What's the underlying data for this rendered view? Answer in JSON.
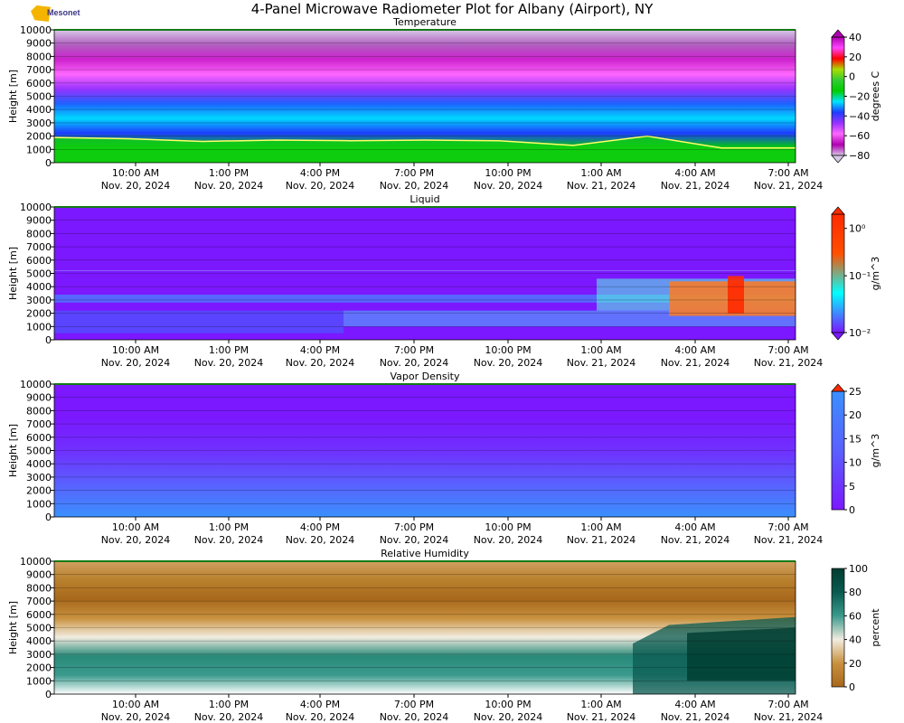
{
  "figure": {
    "title": "4-Panel Microwave Radiometer Plot for Albany (Airport), NY",
    "logo_text": "Mesonet"
  },
  "chart_data": [
    {
      "type": "heatmap",
      "title": "Temperature",
      "ylabel": "Height [m]",
      "ylim": [
        0,
        10000
      ],
      "yticks": [
        "0",
        "1000",
        "2000",
        "3000",
        "4000",
        "5000",
        "6000",
        "7000",
        "8000",
        "9000",
        "10000"
      ],
      "xticks": [
        {
          "time": "10:00 AM",
          "date": "Nov. 20, 2024"
        },
        {
          "time": "1:00 PM",
          "date": "Nov. 20, 2024"
        },
        {
          "time": "4:00 PM",
          "date": "Nov. 20, 2024"
        },
        {
          "time": "7:00 PM",
          "date": "Nov. 20, 2024"
        },
        {
          "time": "10:00 PM",
          "date": "Nov. 20, 2024"
        },
        {
          "time": "1:00 AM",
          "date": "Nov. 21, 2024"
        },
        {
          "time": "4:00 AM",
          "date": "Nov. 21, 2024"
        },
        {
          "time": "7:00 AM",
          "date": "Nov. 21, 2024"
        }
      ],
      "colorbar": {
        "label": "degrees C",
        "ticks": [
          "40",
          "20",
          "0",
          "−20",
          "−40",
          "−60",
          "−80"
        ],
        "range": [
          -80,
          40
        ]
      },
      "freezing_level_m": [
        1900,
        1800,
        1600,
        1700,
        1650,
        1700,
        1650,
        1300,
        2000,
        1100,
        1100
      ],
      "colors": [
        "#e6d9f2",
        "#b000b0",
        "#ff66ff",
        "#9933ff",
        "#1e3cff",
        "#00e5ff",
        "#33cc33",
        "#00cc00"
      ]
    },
    {
      "type": "heatmap",
      "title": "Liquid",
      "ylabel": "Height [m]",
      "ylim": [
        0,
        10000
      ],
      "yticks": [
        "0",
        "1000",
        "2000",
        "3000",
        "4000",
        "5000",
        "6000",
        "7000",
        "8000",
        "9000",
        "10000"
      ],
      "colorbar": {
        "label": "g/m^3",
        "ticks": [
          "10⁰",
          "10⁻¹",
          "10⁻²"
        ],
        "scale": "log",
        "range": [
          0.01,
          2
        ]
      },
      "colors": [
        "#7b18ff",
        "#00ffff",
        "#ff5000",
        "#ff2a00"
      ]
    },
    {
      "type": "heatmap",
      "title": "Vapor Density",
      "ylabel": "Height [m]",
      "ylim": [
        0,
        10000
      ],
      "yticks": [
        "0",
        "1000",
        "2000",
        "3000",
        "4000",
        "5000",
        "6000",
        "7000",
        "8000",
        "9000",
        "10000"
      ],
      "colorbar": {
        "label": "g/m^3",
        "ticks": [
          "25",
          "20",
          "15",
          "10",
          "5",
          "0"
        ],
        "range": [
          0,
          25
        ]
      },
      "colors": [
        "#7b18ff",
        "#5a60ff",
        "#3a90ff"
      ]
    },
    {
      "type": "heatmap",
      "title": "Relative Humidity",
      "ylabel": "Height [m]",
      "ylim": [
        0,
        10000
      ],
      "yticks": [
        "0",
        "1000",
        "2000",
        "3000",
        "4000",
        "5000",
        "6000",
        "7000",
        "8000",
        "9000",
        "10000"
      ],
      "colorbar": {
        "label": "percent",
        "ticks": [
          "100",
          "80",
          "60",
          "40",
          "20",
          "0"
        ],
        "range": [
          0,
          100
        ]
      },
      "colors": [
        "#a8681c",
        "#c8913e",
        "#f2ece0",
        "#3a9a8c",
        "#0a5a50",
        "#003c30"
      ]
    }
  ]
}
